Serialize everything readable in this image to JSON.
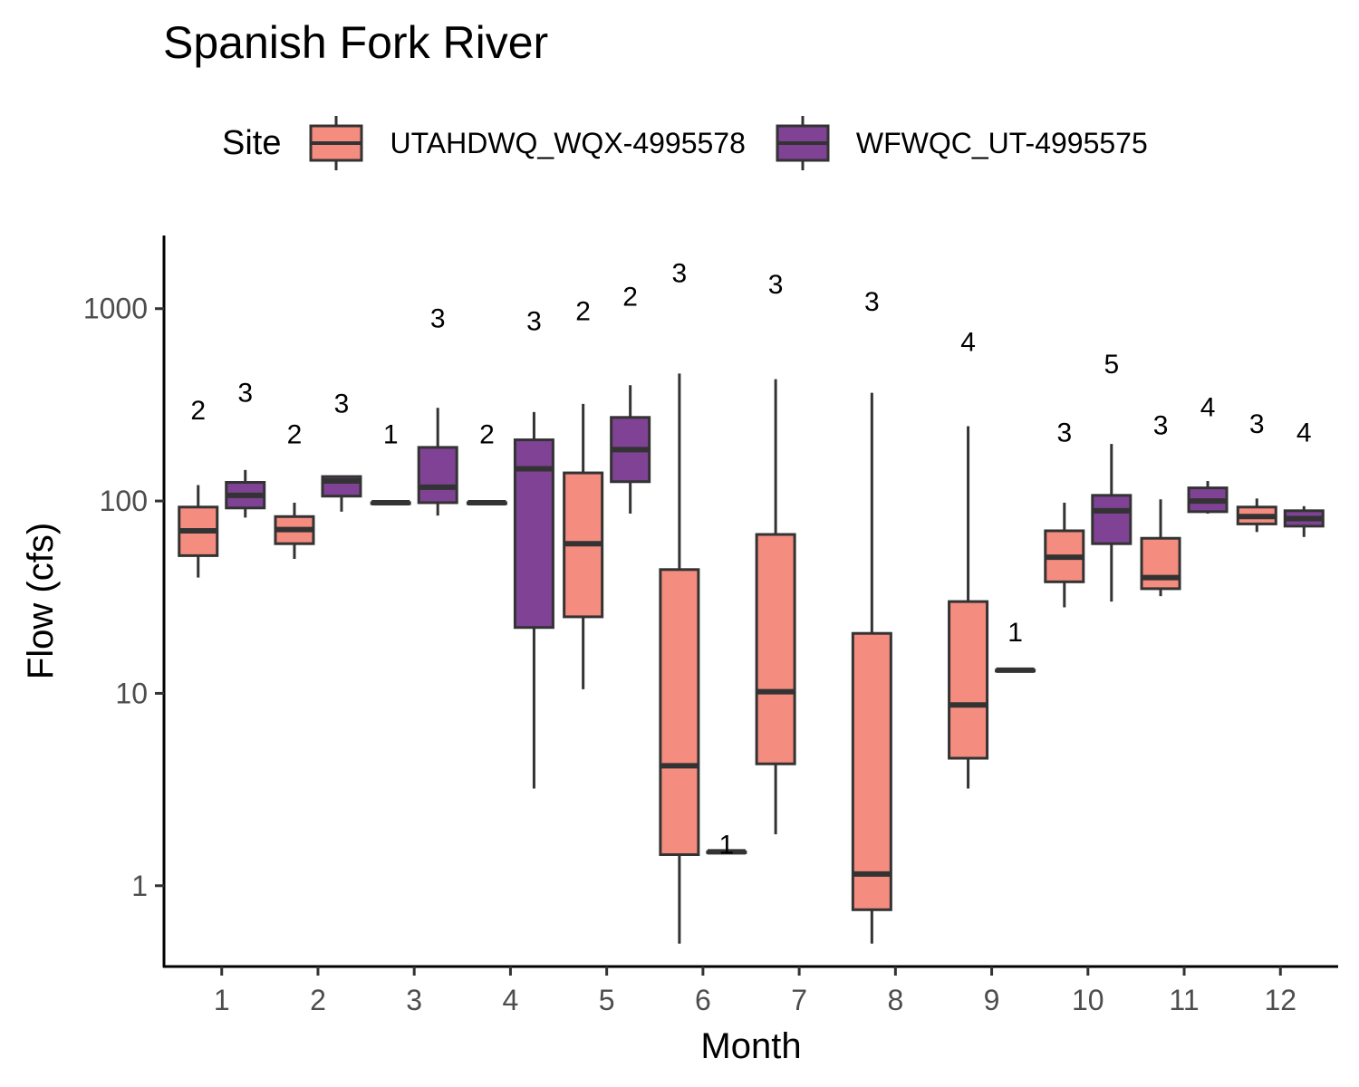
{
  "chart_data": {
    "type": "box",
    "title": "Spanish Fork River",
    "xlabel": "Month",
    "ylabel": "Flow (cfs)",
    "y_scale": "log10",
    "ylim": [
      0.38,
      2400
    ],
    "y_ticks": [
      1,
      10,
      100,
      1000
    ],
    "y_tick_labels": [
      "1",
      "10",
      "100",
      "1000"
    ],
    "categories": [
      "1",
      "2",
      "3",
      "4",
      "5",
      "6",
      "7",
      "8",
      "9",
      "10",
      "11",
      "12"
    ],
    "legend": {
      "title": "Site",
      "position": "top"
    },
    "series": [
      {
        "name": "UTAHDWQ_WQX-4995578",
        "color": "#F48C7F",
        "boxes": [
          {
            "month": 1,
            "min": 40,
            "q1": 52,
            "median": 70,
            "q3": 93,
            "max": 121,
            "n": 2
          },
          {
            "month": 2,
            "min": 50,
            "q1": 60,
            "median": 71,
            "q3": 83,
            "max": 98,
            "n": 2
          },
          {
            "month": 3,
            "min": 98,
            "q1": 98,
            "median": 98,
            "q3": 98,
            "max": 98,
            "n": 1
          },
          {
            "month": 4,
            "min": 98,
            "q1": 98,
            "median": 98,
            "q3": 98,
            "max": 98,
            "n": 2
          },
          {
            "month": 5,
            "min": 10.5,
            "q1": 25,
            "median": 60,
            "q3": 140,
            "max": 320,
            "n": 2
          },
          {
            "month": 6,
            "min": 0.5,
            "q1": 1.45,
            "median": 4.2,
            "q3": 44,
            "max": 460,
            "n": 3
          },
          {
            "month": 7,
            "min": 1.85,
            "q1": 4.3,
            "median": 10.2,
            "q3": 67,
            "max": 430,
            "n": 3
          },
          {
            "month": 8,
            "min": 0.5,
            "q1": 0.75,
            "median": 1.15,
            "q3": 20.5,
            "max": 365,
            "n": 3
          },
          {
            "month": 9,
            "min": 3.2,
            "q1": 4.6,
            "median": 8.7,
            "q3": 30,
            "max": 245,
            "n": 4
          },
          {
            "month": 10,
            "min": 28,
            "q1": 38,
            "median": 51,
            "q3": 70,
            "max": 98,
            "n": 3
          },
          {
            "month": 11,
            "min": 32,
            "q1": 35,
            "median": 40,
            "q3": 64,
            "max": 102,
            "n": 3
          },
          {
            "month": 12,
            "min": 69,
            "q1": 76,
            "median": 83,
            "q3": 93,
            "max": 103,
            "n": 3
          }
        ]
      },
      {
        "name": "WFWQC_UT-4995575",
        "color": "#7F4294",
        "boxes": [
          {
            "month": 1,
            "min": 82,
            "q1": 92,
            "median": 107,
            "q3": 125,
            "max": 145,
            "n": 3
          },
          {
            "month": 2,
            "min": 88,
            "q1": 106,
            "median": 127,
            "q3": 134,
            "max": 134,
            "n": 3
          },
          {
            "month": 3,
            "min": 84,
            "q1": 98,
            "median": 118,
            "q3": 190,
            "max": 305,
            "n": 3
          },
          {
            "month": 4,
            "min": 3.2,
            "q1": 22,
            "median": 147,
            "q3": 208,
            "max": 290,
            "n": 3
          },
          {
            "month": 5,
            "min": 86,
            "q1": 126,
            "median": 185,
            "q3": 272,
            "max": 400,
            "n": 2
          },
          {
            "month": 6,
            "min": 1.5,
            "q1": 1.5,
            "median": 1.5,
            "q3": 1.5,
            "max": 1.5,
            "n": 1
          },
          {
            "month": 9,
            "min": 13.2,
            "q1": 13.2,
            "median": 13.2,
            "q3": 13.2,
            "max": 13.2,
            "n": 1
          },
          {
            "month": 10,
            "min": 30,
            "q1": 60,
            "median": 89,
            "q3": 107,
            "max": 198,
            "n": 5
          },
          {
            "month": 11,
            "min": 86,
            "q1": 88,
            "median": 100,
            "q3": 117,
            "max": 127,
            "n": 4
          },
          {
            "month": 12,
            "min": 65,
            "q1": 74,
            "median": 81,
            "q3": 89,
            "max": 94,
            "n": 4
          }
        ]
      }
    ],
    "n_label_values": {
      "UTAHDWQ_WQX-4995578": [
        300,
        225,
        225,
        225,
        980,
        1550,
        1350,
        1100,
        680,
        230,
        250,
        255
      ],
      "WFWQC_UT-4995575": [
        370,
        325,
        900,
        870,
        1170,
        1.65,
        null,
        null,
        21,
        520,
        310,
        230
      ]
    }
  }
}
